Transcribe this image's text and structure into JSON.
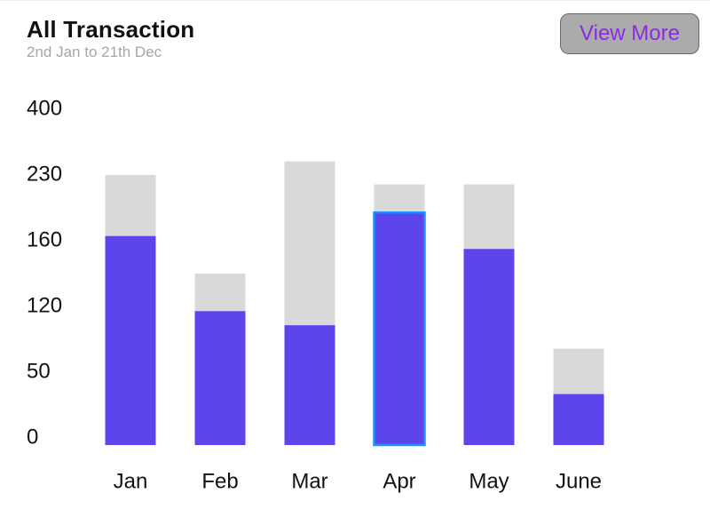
{
  "header": {
    "title": "All Transaction",
    "subtitle": "2nd Jan to 21th Dec",
    "view_more_label": "View More"
  },
  "colors": {
    "total": "#d9d9d9",
    "value": "#5b45eb",
    "highlight_border": "#1e90ff",
    "button_bg": "#ababab",
    "button_text": "#8a2be2"
  },
  "chart_data": {
    "type": "bar",
    "stacked": "overlay",
    "categories": [
      "Jan",
      "Feb",
      "Mar",
      "Apr",
      "May",
      "June"
    ],
    "y_tick_labels": [
      "400",
      "230",
      "160",
      "120",
      "50",
      "0"
    ],
    "series": [
      {
        "values": [
          230,
          140,
          265,
          220,
          220,
          75
        ]
      },
      {
        "values": [
          165,
          115,
          100,
          190,
          155,
          35
        ]
      }
    ],
    "highlighted_category": "Apr",
    "grid": false,
    "legend": "none"
  }
}
